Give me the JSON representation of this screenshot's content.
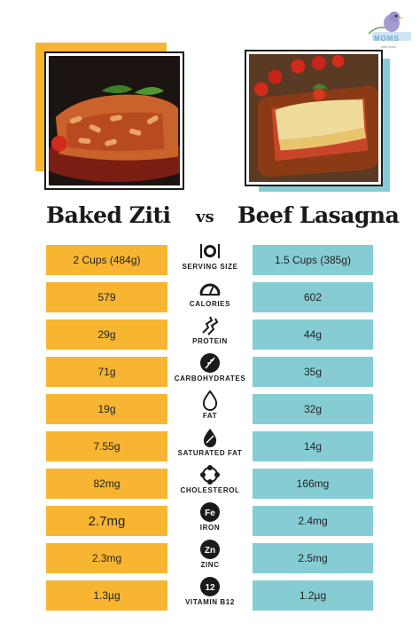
{
  "brand": {
    "name": "MOMS",
    "tagline": "who think"
  },
  "titles": {
    "left": "Baked Ziti",
    "vs": "vs",
    "right": "Beef Lasagna"
  },
  "colors": {
    "left": "#f7b532",
    "right": "#86cdd3",
    "text": "#1a1a1a"
  },
  "rows": [
    {
      "label": "SERVING SIZE",
      "icon": "fork-knife-plate-icon",
      "left": "2 Cups (484g)",
      "right": "1.5 Cups (385g)"
    },
    {
      "label": "CALORIES",
      "icon": "gauge-icon",
      "left": "579",
      "right": "602"
    },
    {
      "label": "PROTEIN",
      "icon": "protein-icon",
      "left": "29g",
      "right": "44g"
    },
    {
      "label": "CARBOHYDRATES",
      "icon": "wheat-icon",
      "left": "71g",
      "right": "35g"
    },
    {
      "label": "FAT",
      "icon": "fat-drop-icon",
      "left": "19g",
      "right": "32g"
    },
    {
      "label": "SATURATED FAT",
      "icon": "saturated-fat-drop-icon",
      "left": "7.55g",
      "right": "14g"
    },
    {
      "label": "CHOLESTEROL",
      "icon": "cholesterol-icon",
      "left": "82mg",
      "right": "166mg"
    },
    {
      "label": "IRON",
      "icon": "iron-icon",
      "badge": "Fe",
      "left": "2.7mg",
      "right": "2.4mg"
    },
    {
      "label": "ZINC",
      "icon": "zinc-icon",
      "badge": "Zn",
      "left": "2.3mg",
      "right": "2.5mg"
    },
    {
      "label": "VITAMIN B12",
      "icon": "vitamin-b12-icon",
      "badge": "12",
      "left": "1.3µg",
      "right": "1.2µg"
    }
  ]
}
